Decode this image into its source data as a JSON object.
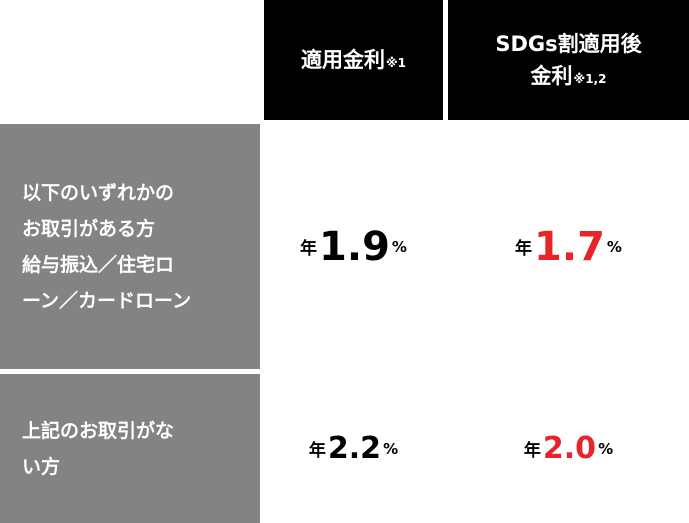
{
  "header": {
    "applied_rate": {
      "label": "適用金利",
      "note": "※1"
    },
    "sdgs_rate": {
      "line1": "SDGs割適用後",
      "line2": "金利",
      "note": "※1,2"
    }
  },
  "rows": [
    {
      "label_lines": [
        "以下のいずれかの",
        "お取引がある方",
        "給与振込／住宅ロ",
        "ーン／カードローン"
      ],
      "applied": {
        "prefix": "年",
        "value": "1.9",
        "unit": "%"
      },
      "sdgs": {
        "prefix": "年",
        "value": "1.7",
        "unit": "%"
      }
    },
    {
      "label_lines": [
        "上記のお取引がな",
        "い方"
      ],
      "applied": {
        "prefix": "年",
        "value": "2.2",
        "unit": "%"
      },
      "sdgs": {
        "prefix": "年",
        "value": "2.0",
        "unit": "%"
      }
    }
  ],
  "colors": {
    "header_bg": "#000000",
    "row_header_bg": "#838383",
    "highlight_red": "#e8232a"
  }
}
